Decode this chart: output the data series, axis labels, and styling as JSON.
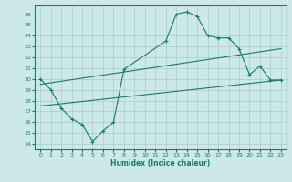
{
  "xlabel": "Humidex (Indice chaleur)",
  "bg_color": "#cce8e8",
  "grid_color": "#aacccc",
  "line_color": "#1a7a6a",
  "xlim": [
    -0.5,
    23.5
  ],
  "ylim": [
    13.5,
    26.8
  ],
  "xticks": [
    0,
    1,
    2,
    3,
    4,
    5,
    6,
    7,
    8,
    9,
    10,
    11,
    12,
    13,
    14,
    15,
    16,
    17,
    18,
    19,
    20,
    21,
    22,
    23
  ],
  "yticks": [
    14,
    15,
    16,
    17,
    18,
    19,
    20,
    21,
    22,
    23,
    24,
    25,
    26
  ],
  "line1_x": [
    0,
    1,
    2,
    3,
    4,
    5,
    6,
    7,
    8,
    12,
    13,
    14,
    15,
    16,
    17,
    18,
    19,
    20,
    21,
    22,
    23
  ],
  "line1_y": [
    20.0,
    19.0,
    17.3,
    16.3,
    15.8,
    14.2,
    15.2,
    16.0,
    20.9,
    23.5,
    26.0,
    26.2,
    25.8,
    24.0,
    23.8,
    23.8,
    22.8,
    20.4,
    21.2,
    19.9,
    19.9
  ],
  "line2_x": [
    0,
    23
  ],
  "line2_y": [
    17.5,
    19.9
  ],
  "line3_x": [
    0,
    23
  ],
  "line3_y": [
    19.5,
    22.8
  ]
}
